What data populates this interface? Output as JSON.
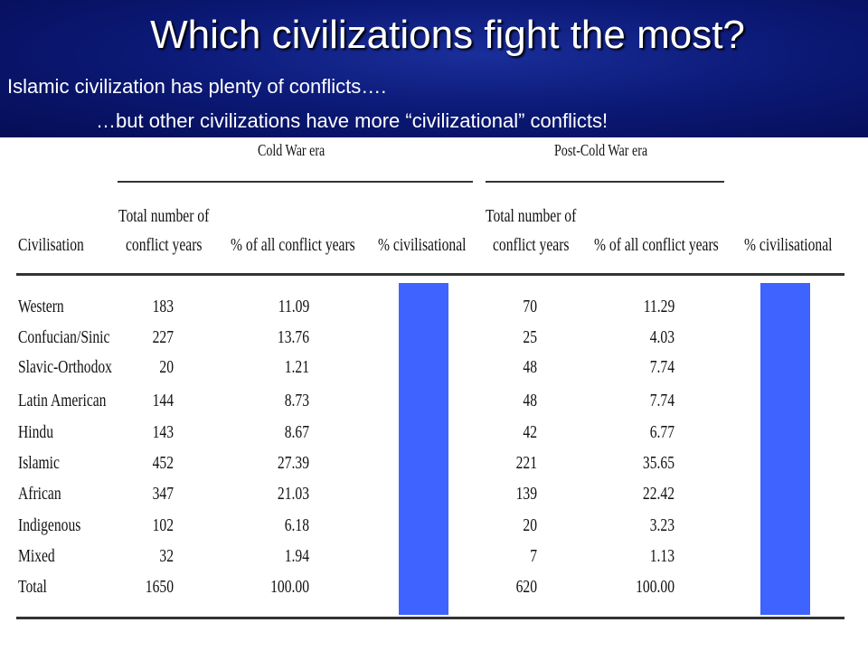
{
  "slide": {
    "title": "Which civilizations fight the most?",
    "subtitle1": "Islamic civilization has plenty of conflicts….",
    "subtitle2": "…but other civilizations have more “civilizational” conflicts!"
  },
  "table": {
    "era_cold": "Cold War era",
    "era_post": "Post-Cold War era",
    "headers": {
      "civ": "Civilisation",
      "total1": "Total number of",
      "total2": "conflict years",
      "pct_all": "% of all conflict years",
      "pct_civ": "% civilisational"
    },
    "rows": [
      {
        "name": "Western",
        "cw_total": "183",
        "cw_pct": "11.09",
        "pcw_total": "70",
        "pcw_pct": "11.29"
      },
      {
        "name": "Confucian/Sinic",
        "cw_total": "227",
        "cw_pct": "13.76",
        "pcw_total": "25",
        "pcw_pct": "4.03"
      },
      {
        "name": "Slavic-Orthodox",
        "cw_total": "20",
        "cw_pct": "1.21",
        "pcw_total": "48",
        "pcw_pct": "7.74"
      },
      {
        "name": "Latin American",
        "cw_total": "144",
        "cw_pct": "8.73",
        "pcw_total": "48",
        "pcw_pct": "7.74"
      },
      {
        "name": "Hindu",
        "cw_total": "143",
        "cw_pct": "8.67",
        "pcw_total": "42",
        "pcw_pct": "6.77"
      },
      {
        "name": "Islamic",
        "cw_total": "452",
        "cw_pct": "27.39",
        "pcw_total": "221",
        "pcw_pct": "35.65"
      },
      {
        "name": "African",
        "cw_total": "347",
        "cw_pct": "21.03",
        "pcw_total": "139",
        "pcw_pct": "22.42"
      },
      {
        "name": "Indigenous",
        "cw_total": "102",
        "cw_pct": "6.18",
        "pcw_total": "20",
        "pcw_pct": "3.23"
      },
      {
        "name": "Mixed",
        "cw_total": "32",
        "cw_pct": "1.94",
        "pcw_total": "7",
        "pcw_pct": "1.13"
      },
      {
        "name": "Total",
        "cw_total": "1650",
        "cw_pct": "100.00",
        "pcw_total": "620",
        "pcw_pct": "100.00"
      }
    ]
  },
  "colors": {
    "header_bg": "#0c1a78",
    "mask_bar": "#3e63ff"
  }
}
